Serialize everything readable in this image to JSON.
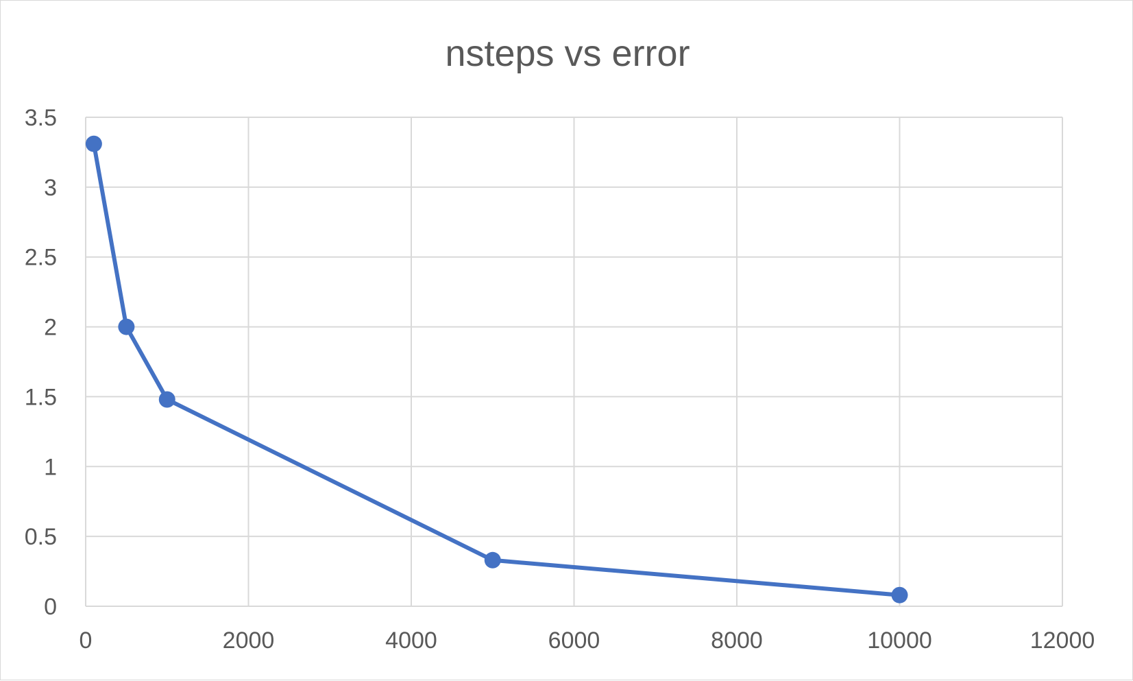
{
  "chart_data": {
    "type": "scatter",
    "title": "nsteps vs error",
    "xlabel": "",
    "ylabel": "",
    "xlim": [
      0,
      12000
    ],
    "ylim": [
      0,
      3.5
    ],
    "xticks": [
      "0",
      "2000",
      "4000",
      "6000",
      "8000",
      "10000",
      "12000"
    ],
    "yticks": [
      "0",
      "0.5",
      "1",
      "1.5",
      "2",
      "2.5",
      "3",
      "3.5"
    ],
    "grid": true,
    "legend": "none",
    "series": [
      {
        "x": [
          100,
          500,
          1000,
          5000,
          10000
        ],
        "y": [
          3.31,
          2.0,
          1.48,
          0.33,
          0.08
        ],
        "color": "#4472c4",
        "markers": true,
        "line": "straight"
      }
    ]
  }
}
